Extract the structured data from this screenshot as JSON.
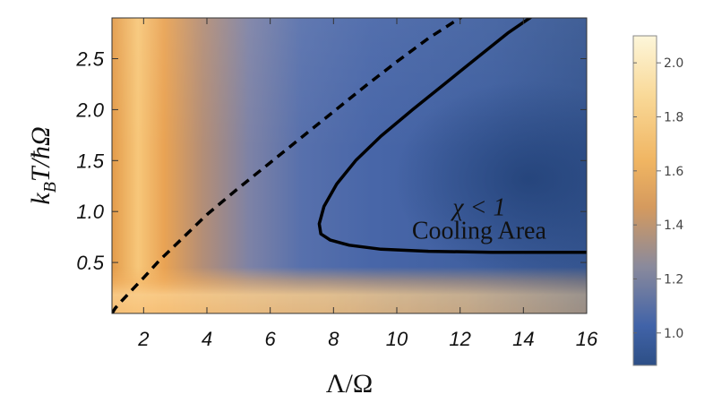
{
  "chart_data": {
    "type": "heatmap",
    "title": "",
    "xlabel": "Λ/Ω",
    "ylabel": "k_B T/ħΩ",
    "xlim": [
      1,
      16
    ],
    "ylim": [
      0,
      2.9
    ],
    "x_ticks": [
      2,
      4,
      6,
      8,
      10,
      12,
      14,
      16
    ],
    "y_ticks": [
      0.5,
      1.0,
      1.5,
      2.0,
      2.5
    ],
    "colorbar": {
      "range": [
        0.88,
        2.1
      ],
      "ticks": [
        1.0,
        1.2,
        1.4,
        1.6,
        1.8,
        2.0
      ],
      "colors": [
        "#2d4f86",
        "#4163a8",
        "#8a8a9c",
        "#e8a85a",
        "#fdf6da"
      ]
    },
    "annotations": [
      {
        "text": "χ < 1",
        "x": 12.6,
        "y": 1.05
      },
      {
        "text": "Cooling Area",
        "x": 12.6,
        "y": 0.82
      }
    ],
    "series": [
      {
        "style": "dashed",
        "x": [
          1.0,
          1.1,
          1.3,
          1.6,
          2.0,
          2.5,
          3.0,
          3.5,
          4.0,
          5.0,
          6.0,
          7.0,
          8.0,
          9.0,
          10.0,
          11.0,
          12.1
        ],
        "y": [
          0.0,
          0.05,
          0.12,
          0.22,
          0.35,
          0.52,
          0.67,
          0.82,
          0.97,
          1.23,
          1.48,
          1.73,
          1.98,
          2.23,
          2.47,
          2.7,
          2.92
        ]
      },
      {
        "style": "solid",
        "x": [
          14.3,
          13.5,
          12.5,
          11.5,
          10.5,
          9.5,
          8.7,
          8.1,
          7.7,
          7.55,
          7.6,
          7.9,
          8.5,
          9.5,
          11.0,
          13.0,
          15.0,
          16.0
        ],
        "y": [
          2.92,
          2.75,
          2.5,
          2.25,
          2.0,
          1.74,
          1.5,
          1.27,
          1.05,
          0.88,
          0.78,
          0.72,
          0.67,
          0.63,
          0.61,
          0.6,
          0.6,
          0.6
        ]
      }
    ]
  }
}
